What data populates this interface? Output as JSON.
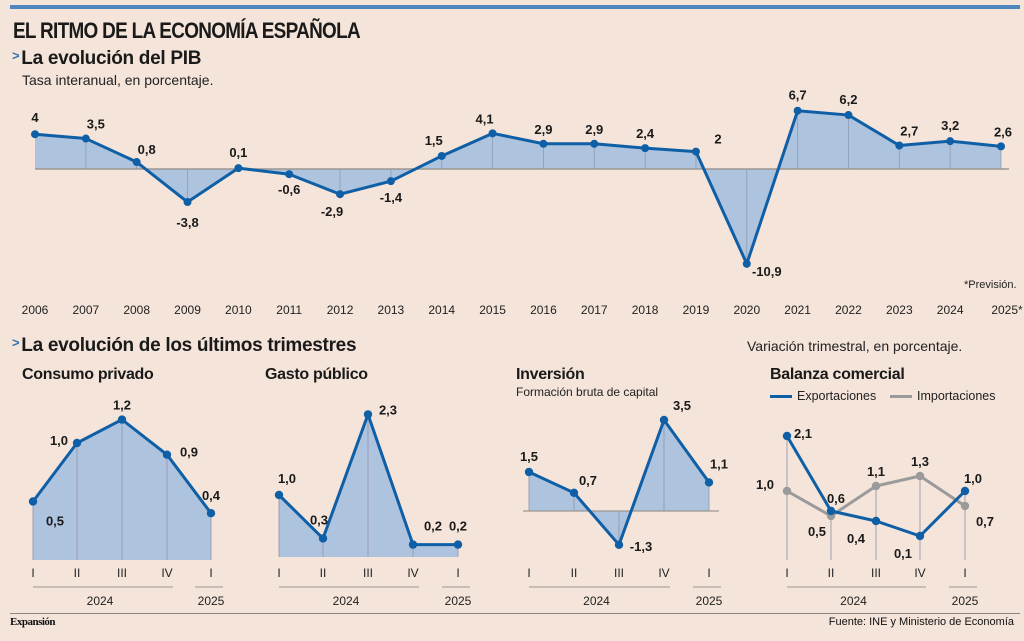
{
  "header": {
    "title": "EL RITMO DE LA ECONOMÍA ESPAÑOLA"
  },
  "section_pib": {
    "arrow": ">",
    "title": "La evolución del PIB",
    "subtitle": "Tasa interanual, en porcentaje.",
    "note": "*Previsión."
  },
  "section_trimestres": {
    "arrow": ">",
    "title": "La evolución de los últimos trimestres",
    "subtitle": "Variación trimestral, en porcentaje."
  },
  "colors": {
    "line": "#0f5fa6",
    "fill": "#adc3de",
    "gray_line": "#9a9a9a",
    "grid": "#9c9690",
    "background": "#f4e4d9",
    "topbar": "#4f86bd"
  },
  "chart_data": [
    {
      "type": "area",
      "title": "La evolución del PIB",
      "subtitle": "Tasa interanual, en porcentaje.",
      "x": [
        "2006",
        "2007",
        "2008",
        "2009",
        "2010",
        "2011",
        "2012",
        "2013",
        "2014",
        "2015",
        "2016",
        "2017",
        "2018",
        "2019",
        "2020",
        "2021",
        "2022",
        "2023",
        "2024",
        "2025*"
      ],
      "series": [
        {
          "name": "PIB",
          "values": [
            4,
            3.5,
            0.8,
            -3.8,
            0.1,
            -0.6,
            -2.9,
            -1.4,
            1.5,
            4.1,
            2.9,
            2.9,
            2.4,
            2,
            -10.9,
            6.7,
            6.2,
            2.7,
            3.2,
            2.6
          ],
          "labels": [
            "4",
            "3,5",
            "0,8",
            "-3,8",
            "0,1",
            "-0,6",
            "-2,9",
            "-1,4",
            "1,5",
            "4,1",
            "2,9",
            "2,9",
            "2,4",
            "2",
            "-10,9",
            "6,7",
            "6,2",
            "2,7",
            "3,2",
            "2,6"
          ]
        }
      ],
      "ylim": [
        -10.9,
        6.7
      ],
      "annotation": "*Previsión."
    },
    {
      "type": "area",
      "title": "Consumo privado",
      "x": [
        "I",
        "II",
        "III",
        "IV",
        "I"
      ],
      "year_groups": [
        {
          "label": "2024",
          "span": 4
        },
        {
          "label": "2025",
          "span": 1
        }
      ],
      "series": [
        {
          "name": "Consumo privado",
          "values": [
            0.5,
            1.0,
            1.2,
            0.9,
            0.4
          ],
          "labels": [
            "0,5",
            "1,0",
            "1,2",
            "0,9",
            "0,4"
          ]
        }
      ]
    },
    {
      "type": "area",
      "title": "Gasto público",
      "x": [
        "I",
        "II",
        "III",
        "IV",
        "I"
      ],
      "year_groups": [
        {
          "label": "2024",
          "span": 4
        },
        {
          "label": "2025",
          "span": 1
        }
      ],
      "series": [
        {
          "name": "Gasto público",
          "values": [
            1.0,
            0.3,
            2.3,
            0.2,
            0.2
          ],
          "labels": [
            "1,0",
            "0,3",
            "2,3",
            "0,2",
            "0,2"
          ]
        }
      ]
    },
    {
      "type": "area",
      "title": "Inversión",
      "subtitle": "Formación bruta de capital",
      "x": [
        "I",
        "II",
        "III",
        "IV",
        "I"
      ],
      "year_groups": [
        {
          "label": "2024",
          "span": 4
        },
        {
          "label": "2025",
          "span": 1
        }
      ],
      "series": [
        {
          "name": "Inversión",
          "values": [
            1.5,
            0.7,
            -1.3,
            3.5,
            1.1
          ],
          "labels": [
            "1,5",
            "0,7",
            "-1,3",
            "3,5",
            "1,1"
          ]
        }
      ]
    },
    {
      "type": "line",
      "title": "Balanza comercial",
      "x": [
        "I",
        "II",
        "III",
        "IV",
        "I"
      ],
      "year_groups": [
        {
          "label": "2024",
          "span": 4
        },
        {
          "label": "2025",
          "span": 1
        }
      ],
      "legend": [
        "Exportaciones",
        "Importaciones"
      ],
      "legend_position": "top",
      "series": [
        {
          "name": "Exportaciones",
          "values": [
            2.1,
            0.6,
            0.4,
            0.1,
            1.0
          ],
          "labels": [
            "2,1",
            "0,6",
            "0,4",
            "0,1",
            "1,0"
          ]
        },
        {
          "name": "Importaciones",
          "values": [
            1.0,
            0.5,
            1.1,
            1.3,
            0.7
          ],
          "labels": [
            "1,0",
            "0,5",
            "1,1",
            "1,3",
            "0,7"
          ]
        }
      ]
    }
  ],
  "footer": {
    "brand": "Expansión",
    "source": "Fuente: INE y Ministerio de Economía"
  }
}
